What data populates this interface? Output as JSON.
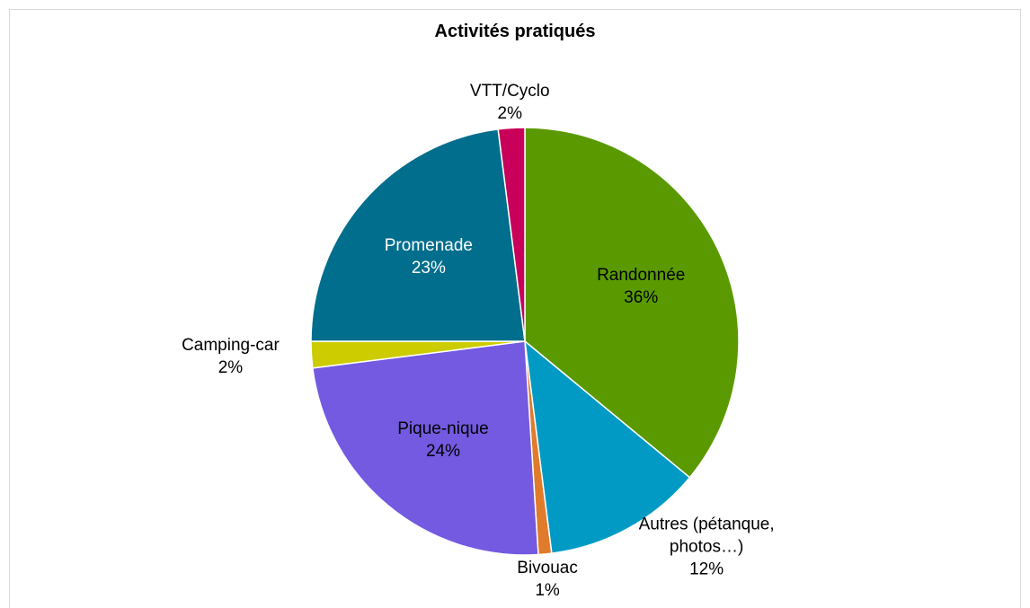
{
  "chart_data": {
    "type": "pie",
    "title": "Activités pratiqués",
    "categories": [
      "Randonnée",
      "Autres (pétanque, photos…)",
      "Bivouac",
      "Pique-nique",
      "Camping-car",
      "Promenade",
      "VTT/Cyclo"
    ],
    "values": [
      36,
      12,
      1,
      24,
      2,
      23,
      2
    ],
    "value_labels": [
      "36%",
      "12%",
      "1%",
      "24%",
      "2%",
      "23%",
      "2%"
    ],
    "colors": [
      "#5a9a00",
      "#009ac4",
      "#e07b2c",
      "#735ae0",
      "#cccc00",
      "#006e8c",
      "#c8005a"
    ]
  }
}
